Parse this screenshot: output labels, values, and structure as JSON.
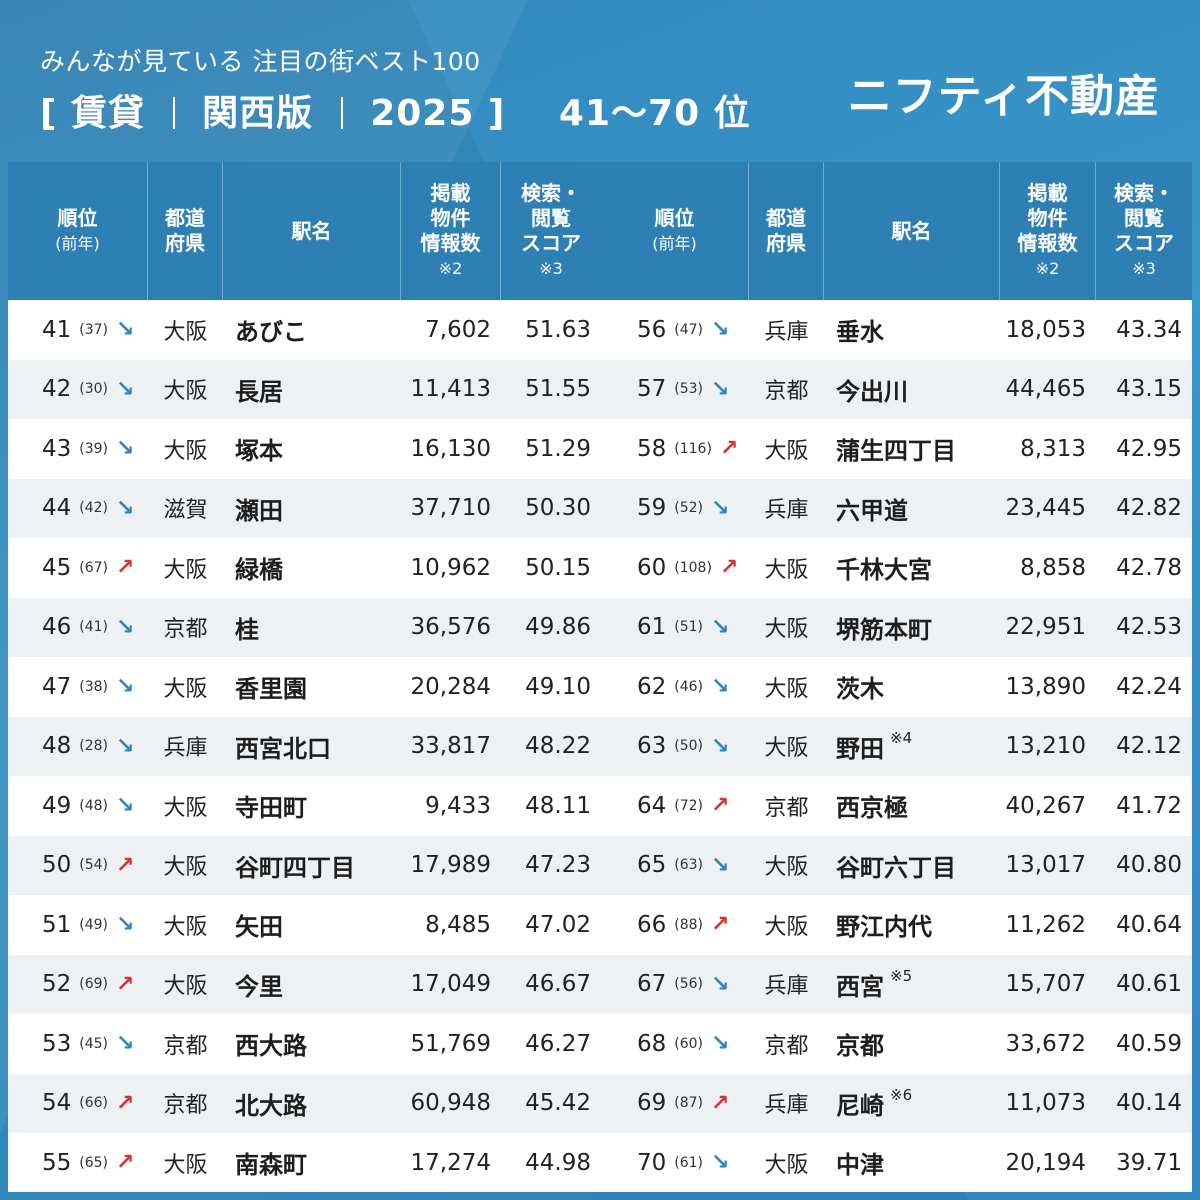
{
  "header": {
    "subtitle": "みんなが見ている 注目の街ベスト100",
    "title_open": "[ 賃貸",
    "title_region": "関西版",
    "title_year": "2025 ]",
    "title_ranks": "41〜70 位",
    "brand": "ニフティ不動産"
  },
  "columns": {
    "rank": "順位",
    "rank_sub": "(前年)",
    "pref_1": "都道",
    "pref_2": "府県",
    "station": "駅名",
    "listings_1": "掲載",
    "listings_2": "物件",
    "listings_3": "情報数",
    "listings_note": "※2",
    "score_1": "検索・",
    "score_2": "閲覧",
    "score_3": "スコア",
    "score_note": "※3"
  },
  "colors": {
    "up": "#d8332f",
    "down": "#2f86bd",
    "header_bg": "#2e7fb3"
  },
  "left_rows": [
    {
      "rank": "41",
      "prev": "(37)",
      "trend": "down",
      "pref": "大阪",
      "station": "あびこ",
      "note": "",
      "listings": "7,602",
      "score": "51.63"
    },
    {
      "rank": "42",
      "prev": "(30)",
      "trend": "down",
      "pref": "大阪",
      "station": "長居",
      "note": "",
      "listings": "11,413",
      "score": "51.55"
    },
    {
      "rank": "43",
      "prev": "(39)",
      "trend": "down",
      "pref": "大阪",
      "station": "塚本",
      "note": "",
      "listings": "16,130",
      "score": "51.29"
    },
    {
      "rank": "44",
      "prev": "(42)",
      "trend": "down",
      "pref": "滋賀",
      "station": "瀬田",
      "note": "",
      "listings": "37,710",
      "score": "50.30"
    },
    {
      "rank": "45",
      "prev": "(67)",
      "trend": "up",
      "pref": "大阪",
      "station": "緑橋",
      "note": "",
      "listings": "10,962",
      "score": "50.15"
    },
    {
      "rank": "46",
      "prev": "(41)",
      "trend": "down",
      "pref": "京都",
      "station": "桂",
      "note": "",
      "listings": "36,576",
      "score": "49.86"
    },
    {
      "rank": "47",
      "prev": "(38)",
      "trend": "down",
      "pref": "大阪",
      "station": "香里園",
      "note": "",
      "listings": "20,284",
      "score": "49.10"
    },
    {
      "rank": "48",
      "prev": "(28)",
      "trend": "down",
      "pref": "兵庫",
      "station": "西宮北口",
      "note": "",
      "listings": "33,817",
      "score": "48.22"
    },
    {
      "rank": "49",
      "prev": "(48)",
      "trend": "down",
      "pref": "大阪",
      "station": "寺田町",
      "note": "",
      "listings": "9,433",
      "score": "48.11"
    },
    {
      "rank": "50",
      "prev": "(54)",
      "trend": "up",
      "pref": "大阪",
      "station": "谷町四丁目",
      "note": "",
      "listings": "17,989",
      "score": "47.23"
    },
    {
      "rank": "51",
      "prev": "(49)",
      "trend": "down",
      "pref": "大阪",
      "station": "矢田",
      "note": "",
      "listings": "8,485",
      "score": "47.02"
    },
    {
      "rank": "52",
      "prev": "(69)",
      "trend": "up",
      "pref": "大阪",
      "station": "今里",
      "note": "",
      "listings": "17,049",
      "score": "46.67"
    },
    {
      "rank": "53",
      "prev": "(45)",
      "trend": "down",
      "pref": "京都",
      "station": "西大路",
      "note": "",
      "listings": "51,769",
      "score": "46.27"
    },
    {
      "rank": "54",
      "prev": "(66)",
      "trend": "up",
      "pref": "京都",
      "station": "北大路",
      "note": "",
      "listings": "60,948",
      "score": "45.42"
    },
    {
      "rank": "55",
      "prev": "(65)",
      "trend": "up",
      "pref": "大阪",
      "station": "南森町",
      "note": "",
      "listings": "17,274",
      "score": "44.98"
    }
  ],
  "right_rows": [
    {
      "rank": "56",
      "prev": "(47)",
      "trend": "down",
      "pref": "兵庫",
      "station": "垂水",
      "note": "",
      "listings": "18,053",
      "score": "43.34"
    },
    {
      "rank": "57",
      "prev": "(53)",
      "trend": "down",
      "pref": "京都",
      "station": "今出川",
      "note": "",
      "listings": "44,465",
      "score": "43.15"
    },
    {
      "rank": "58",
      "prev": "(116)",
      "trend": "up",
      "pref": "大阪",
      "station": "蒲生四丁目",
      "note": "",
      "listings": "8,313",
      "score": "42.95"
    },
    {
      "rank": "59",
      "prev": "(52)",
      "trend": "down",
      "pref": "兵庫",
      "station": "六甲道",
      "note": "",
      "listings": "23,445",
      "score": "42.82"
    },
    {
      "rank": "60",
      "prev": "(108)",
      "trend": "up",
      "pref": "大阪",
      "station": "千林大宮",
      "note": "",
      "listings": "8,858",
      "score": "42.78"
    },
    {
      "rank": "61",
      "prev": "(51)",
      "trend": "down",
      "pref": "大阪",
      "station": "堺筋本町",
      "note": "",
      "listings": "22,951",
      "score": "42.53"
    },
    {
      "rank": "62",
      "prev": "(46)",
      "trend": "down",
      "pref": "大阪",
      "station": "茨木",
      "note": "",
      "listings": "13,890",
      "score": "42.24"
    },
    {
      "rank": "63",
      "prev": "(50)",
      "trend": "down",
      "pref": "大阪",
      "station": "野田",
      "note": "※4",
      "listings": "13,210",
      "score": "42.12"
    },
    {
      "rank": "64",
      "prev": "(72)",
      "trend": "up",
      "pref": "京都",
      "station": "西京極",
      "note": "",
      "listings": "40,267",
      "score": "41.72"
    },
    {
      "rank": "65",
      "prev": "(63)",
      "trend": "down",
      "pref": "大阪",
      "station": "谷町六丁目",
      "note": "",
      "listings": "13,017",
      "score": "40.80"
    },
    {
      "rank": "66",
      "prev": "(88)",
      "trend": "up",
      "pref": "大阪",
      "station": "野江内代",
      "note": "",
      "listings": "11,262",
      "score": "40.64"
    },
    {
      "rank": "67",
      "prev": "(56)",
      "trend": "down",
      "pref": "兵庫",
      "station": "西宮",
      "note": "※5",
      "listings": "15,707",
      "score": "40.61"
    },
    {
      "rank": "68",
      "prev": "(60)",
      "trend": "down",
      "pref": "京都",
      "station": "京都",
      "note": "",
      "listings": "33,672",
      "score": "40.59"
    },
    {
      "rank": "69",
      "prev": "(87)",
      "trend": "up",
      "pref": "兵庫",
      "station": "尼崎",
      "note": "※6",
      "listings": "11,073",
      "score": "40.14"
    },
    {
      "rank": "70",
      "prev": "(61)",
      "trend": "down",
      "pref": "大阪",
      "station": "中津",
      "note": "",
      "listings": "20,194",
      "score": "39.71"
    }
  ]
}
